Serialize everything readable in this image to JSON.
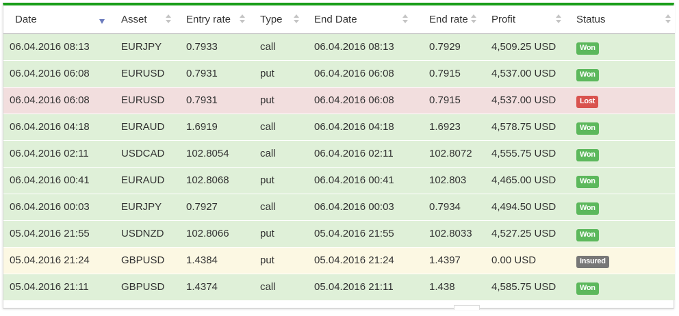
{
  "columns": {
    "date": "Date",
    "asset": "Asset",
    "entry_rate": "Entry rate",
    "type": "Type",
    "end_date": "End Date",
    "end_rate": "End rate",
    "profit": "Profit",
    "status": "Status"
  },
  "colors": {
    "accent_top_border": "#1a9e1a",
    "row_won": "#dff0d8",
    "row_lost": "#f2dede",
    "row_insured": "#fcf8e3",
    "badge_won": "#5cb85c",
    "badge_lost": "#d9534f",
    "badge_insured": "#777777",
    "sort_active": "#6b7bbd"
  },
  "rows": [
    {
      "date": "06.04.2016 08:13",
      "asset": "EURJPY",
      "entry_rate": "0.7933",
      "type": "call",
      "end_date": "06.04.2016 08:13",
      "end_rate": "0.7929",
      "profit": "4,509.25 USD",
      "status": "Won",
      "state": "won"
    },
    {
      "date": "06.04.2016 06:08",
      "asset": "EURUSD",
      "entry_rate": "0.7931",
      "type": "put",
      "end_date": "06.04.2016 06:08",
      "end_rate": "0.7915",
      "profit": "4,537.00 USD",
      "status": "Won",
      "state": "won"
    },
    {
      "date": "06.04.2016 06:08",
      "asset": "EURUSD",
      "entry_rate": "0.7931",
      "type": "put",
      "end_date": "06.04.2016 06:08",
      "end_rate": "0.7915",
      "profit": "4,537.00 USD",
      "status": "Lost",
      "state": "lost"
    },
    {
      "date": "06.04.2016 04:18",
      "asset": "EURAUD",
      "entry_rate": "1.6919",
      "type": "call",
      "end_date": "06.04.2016 04:18",
      "end_rate": "1.6923",
      "profit": "4,578.75 USD",
      "status": "Won",
      "state": "won"
    },
    {
      "date": "06.04.2016 02:11",
      "asset": "USDCAD",
      "entry_rate": "102.8054",
      "type": "call",
      "end_date": "06.04.2016 02:11",
      "end_rate": "102.8072",
      "profit": "4,555.75 USD",
      "status": "Won",
      "state": "won"
    },
    {
      "date": "06.04.2016 00:41",
      "asset": "EURAUD",
      "entry_rate": "102.8068",
      "type": "put",
      "end_date": "06.04.2016 00:41",
      "end_rate": "102.803",
      "profit": "4,465.00 USD",
      "status": "Won",
      "state": "won"
    },
    {
      "date": "06.04.2016 00:03",
      "asset": "EURJPY",
      "entry_rate": "0.7927",
      "type": "call",
      "end_date": "06.04.2016 00:03",
      "end_rate": "0.7934",
      "profit": "4,494.50 USD",
      "status": "Won",
      "state": "won"
    },
    {
      "date": "05.04.2016 21:55",
      "asset": "USDNZD",
      "entry_rate": "102.8066",
      "type": "put",
      "end_date": "05.04.2016 21:55",
      "end_rate": "102.8033",
      "profit": "4,527.25 USD",
      "status": "Won",
      "state": "won"
    },
    {
      "date": "05.04.2016 21:24",
      "asset": "GBPUSD",
      "entry_rate": "1.4384",
      "type": "put",
      "end_date": "05.04.2016 21:24",
      "end_rate": "1.4397",
      "profit": "0.00 USD",
      "status": "Insured",
      "state": "insured"
    },
    {
      "date": "05.04.2016 21:11",
      "asset": "GBPUSD",
      "entry_rate": "1.4374",
      "type": "call",
      "end_date": "05.04.2016 21:11",
      "end_rate": "1.438",
      "profit": "4,585.75 USD",
      "status": "Won",
      "state": "won"
    }
  ]
}
